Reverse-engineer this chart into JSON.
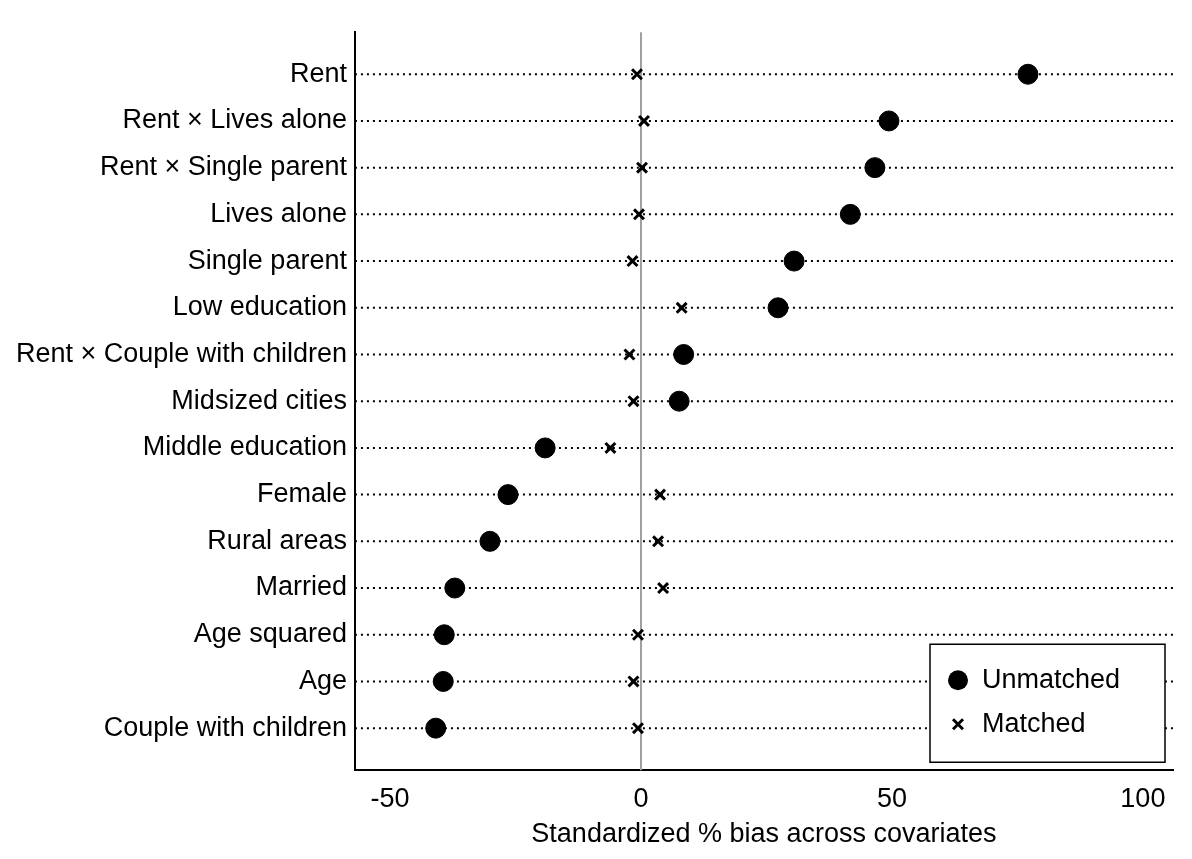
{
  "chart_data": {
    "type": "scatter",
    "orientation": "horizontal",
    "xlabel": "Standardized % bias across covariates",
    "categories": [
      "Rent",
      "Rent × Lives alone",
      "Rent × Single parent",
      "Lives alone",
      "Single parent",
      "Low education",
      "Rent × Couple with children",
      "Midsized cities",
      "Middle education",
      "Female",
      "Rural areas",
      "Married",
      "Age squared",
      "Age",
      "Couple with children"
    ],
    "series": [
      {
        "name": "Unmatched",
        "color": "#000000",
        "marker": "circle",
        "values": [
          77.1,
          49.4,
          46.6,
          41.7,
          30.5,
          27.3,
          8.5,
          7.6,
          -19.1,
          -26.5,
          -30.1,
          -37.1,
          -39.2,
          -39.4,
          -40.9
        ]
      },
      {
        "name": "Matched",
        "color": "#000000",
        "marker": "cross",
        "values": [
          -0.8,
          0.6,
          0.2,
          -0.4,
          -1.7,
          8.1,
          -2.3,
          -1.5,
          -6.1,
          3.8,
          3.4,
          4.4,
          -0.6,
          -1.5,
          -0.6
        ]
      }
    ],
    "xlim": [
      -57,
      106
    ],
    "xticks": [
      -50,
      0,
      50,
      100
    ],
    "ref_lines": [
      {
        "axis": "x",
        "value": 0,
        "color": "#a0a0a0"
      }
    ],
    "grid": "y",
    "legend": "bottom right"
  }
}
